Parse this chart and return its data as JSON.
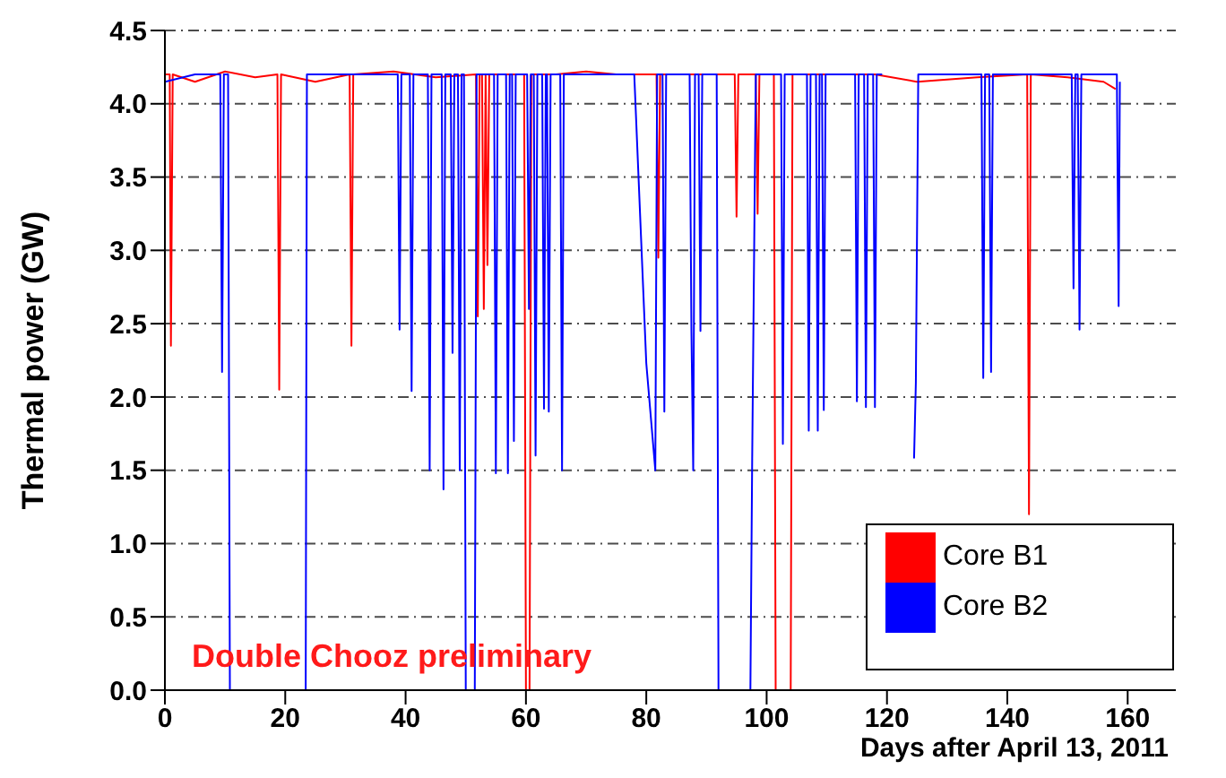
{
  "chart_data": {
    "type": "line",
    "xlabel": "Days after April 13, 2011",
    "ylabel": "Thermal power (GW)",
    "xlim": [
      0,
      168
    ],
    "xticks": [
      0,
      20,
      40,
      60,
      80,
      100,
      120,
      140,
      160
    ],
    "ylim": [
      0,
      4.5
    ],
    "yticks": [
      {
        "value": 0,
        "label": "0.0"
      },
      {
        "value": 0.5,
        "label": "0.5"
      },
      {
        "value": 1,
        "label": "1.0"
      },
      {
        "value": 1.5,
        "label": "1.5"
      },
      {
        "value": 2,
        "label": "2.0"
      },
      {
        "value": 2.5,
        "label": "2.5"
      },
      {
        "value": 3,
        "label": "3.0"
      },
      {
        "value": 3.5,
        "label": "3.5"
      },
      {
        "value": 4,
        "label": "4.0"
      },
      {
        "value": 4.5,
        "label": "4.5"
      }
    ],
    "grid": "y",
    "legend": "bottom right",
    "marker": "none",
    "line_style": "solid",
    "annotations": [
      "Double Chooz preliminary"
    ],
    "series": [
      {
        "name": "Core B1",
        "color": "#ff0000",
        "x": [
          0,
          0.8,
          1,
          1.3,
          5,
          10,
          15,
          18.7,
          19,
          19.3,
          25,
          30.7,
          31,
          31.3,
          38,
          45,
          51.7,
          52,
          52.3,
          52.7,
          53,
          53.3,
          53.6,
          53.9,
          59.7,
          60,
          60.6,
          60.9,
          65,
          70,
          75,
          81.7,
          82,
          82.3,
          88,
          94.7,
          95,
          95.3,
          98.2,
          98.5,
          98.8,
          101.2,
          101.5,
          104,
          104.3,
          110,
          118,
          125,
          135,
          143.3,
          143.6,
          143.9,
          150,
          156,
          158
        ],
        "values": [
          4.2,
          4.2,
          2.35,
          4.2,
          4.15,
          4.22,
          4.18,
          4.2,
          2.05,
          4.2,
          4.15,
          4.2,
          2.35,
          4.2,
          4.22,
          4.18,
          4.2,
          2.55,
          4.2,
          4.2,
          2.6,
          4.2,
          2.9,
          4.2,
          4.2,
          0,
          0,
          4.2,
          4.2,
          4.22,
          4.2,
          4.2,
          2.95,
          4.2,
          4.2,
          4.2,
          3.23,
          4.2,
          4.2,
          3.25,
          4.2,
          4.2,
          0,
          0,
          4.2,
          4.2,
          4.2,
          4.15,
          4.18,
          4.2,
          1.2,
          4.2,
          4.18,
          4.15,
          4.1
        ]
      },
      {
        "name": "Core B2",
        "color": "#0000ff",
        "x": [
          0,
          5,
          9.2,
          9.5,
          9.8,
          10.5,
          10.8,
          23.4,
          23.6,
          30,
          38.7,
          39,
          39.3,
          40.7,
          41,
          41.3,
          43.7,
          44,
          44.3,
          46,
          46.3,
          46.6,
          47.5,
          47.8,
          48.1,
          48.7,
          49,
          49.3,
          49.7,
          50,
          51.5,
          51.8,
          54.7,
          55,
          55.3,
          56.7,
          57,
          57.3,
          57.7,
          58,
          58.3,
          60.2,
          60.5,
          60.8,
          61.3,
          61.6,
          61.9,
          62.7,
          63,
          63.3,
          63.5,
          63.8,
          64.1,
          65.7,
          66,
          66.3,
          72,
          78,
          80,
          81.5,
          81.8,
          82.7,
          83,
          83.3,
          87.2,
          87.5,
          87.8,
          88.1,
          88.7,
          89,
          89.3,
          91.7,
          92,
          97.3,
          97.6,
          98.2,
          102.4,
          102.7,
          103,
          106.7,
          107,
          107.3,
          108.2,
          108.5,
          108.8,
          109.2,
          109.5,
          109.8,
          114.7,
          115,
          115.3,
          116.2,
          116.5,
          116.8,
          117.7,
          118,
          118.3,
          119.2,
          122.7,
          124,
          124.5,
          124.8,
          125.2,
          130,
          135.7,
          136,
          136.3,
          137,
          137.3,
          137.6,
          145,
          150.7,
          151,
          151.3,
          151.7,
          152,
          152.3,
          158.2,
          158.5,
          158.7
        ],
        "values": [
          4.15,
          4.2,
          4.2,
          2.17,
          4.2,
          4.2,
          0,
          0,
          4.2,
          4.2,
          4.2,
          2.46,
          4.2,
          4.2,
          2.04,
          4.2,
          4.2,
          1.5,
          4.2,
          4.2,
          1.37,
          4.2,
          4.2,
          2.3,
          4.2,
          4.2,
          1.5,
          4.2,
          4.2,
          0,
          0,
          4.2,
          4.2,
          1.48,
          4.2,
          4.2,
          1.48,
          4.2,
          4.2,
          1.7,
          4.2,
          4.2,
          2.6,
          4.2,
          4.2,
          1.6,
          4.2,
          4.2,
          1.92,
          4.2,
          4.2,
          1.9,
          4.2,
          4.2,
          1.5,
          4.2,
          4.2,
          4.2,
          2.23,
          1.5,
          4.2,
          4.2,
          1.9,
          4.2,
          4.2,
          2.45,
          1.5,
          4.2,
          4.2,
          2.45,
          4.2,
          4.2,
          0,
          0,
          1.58,
          4.2,
          4.2,
          1.68,
          4.2,
          4.2,
          1.77,
          4.2,
          4.2,
          1.77,
          4.2,
          4.2,
          1.91,
          4.2,
          4.2,
          1.97,
          4.2,
          4.2,
          1.93,
          4.2,
          4.2,
          1.93,
          4.2,
          4.2,
          null,
          null,
          1.58,
          2.1,
          4.2,
          4.2,
          4.2,
          2.13,
          4.2,
          4.2,
          2.17,
          4.2,
          4.2,
          4.2,
          2.74,
          4.2,
          4.2,
          2.46,
          4.2,
          4.2,
          2.62,
          4.15
        ]
      }
    ]
  }
}
